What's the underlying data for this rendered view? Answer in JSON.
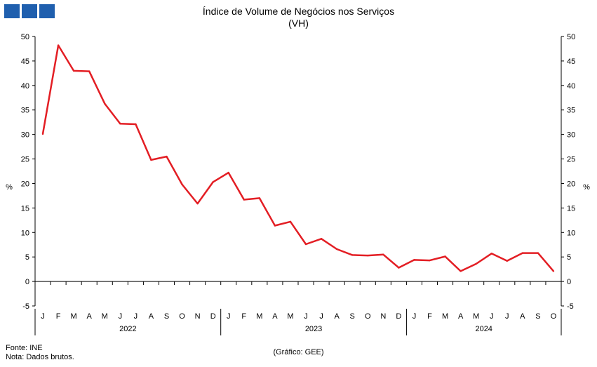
{
  "brand": {
    "block_color": "#1f5fae",
    "blocks": 3
  },
  "chart_data": {
    "type": "line",
    "title": "Índice de Volume de Negócios nos Serviços",
    "subtitle": "(VH)",
    "ylabel_left": "%",
    "ylabel_right": "%",
    "ylim": [
      -5,
      50
    ],
    "yticks": [
      -5,
      0,
      5,
      10,
      15,
      20,
      25,
      30,
      35,
      40,
      45,
      50
    ],
    "grid": false,
    "line_color": "#e31e24",
    "month_labels": [
      "J",
      "F",
      "M",
      "A",
      "M",
      "J",
      "J",
      "A",
      "S",
      "O",
      "N",
      "D",
      "J",
      "F",
      "M",
      "A",
      "M",
      "J",
      "J",
      "A",
      "S",
      "O",
      "N",
      "D",
      "J",
      "F",
      "M",
      "A",
      "M",
      "J",
      "J",
      "A",
      "S",
      "O"
    ],
    "years": [
      {
        "label": "2022",
        "start": 0,
        "count": 12
      },
      {
        "label": "2023",
        "start": 12,
        "count": 12
      },
      {
        "label": "2024",
        "start": 24,
        "count": 10
      }
    ],
    "series": [
      {
        "values": [
          30.1,
          48.2,
          43.0,
          42.9,
          36.3,
          32.2,
          32.1,
          24.8,
          25.5,
          19.8,
          15.9,
          20.3,
          22.2,
          16.7,
          17.0,
          11.4,
          12.2,
          7.6,
          8.7,
          6.6,
          5.4,
          5.3,
          5.5,
          2.8,
          4.4,
          4.3,
          5.1,
          2.1,
          3.6,
          5.7,
          4.2,
          5.8,
          5.8,
          2.1
        ]
      }
    ]
  },
  "footer": {
    "source": "Fonte: INE",
    "note": "Nota: Dados brutos.",
    "credit": "(Gráfico: GEE)"
  }
}
